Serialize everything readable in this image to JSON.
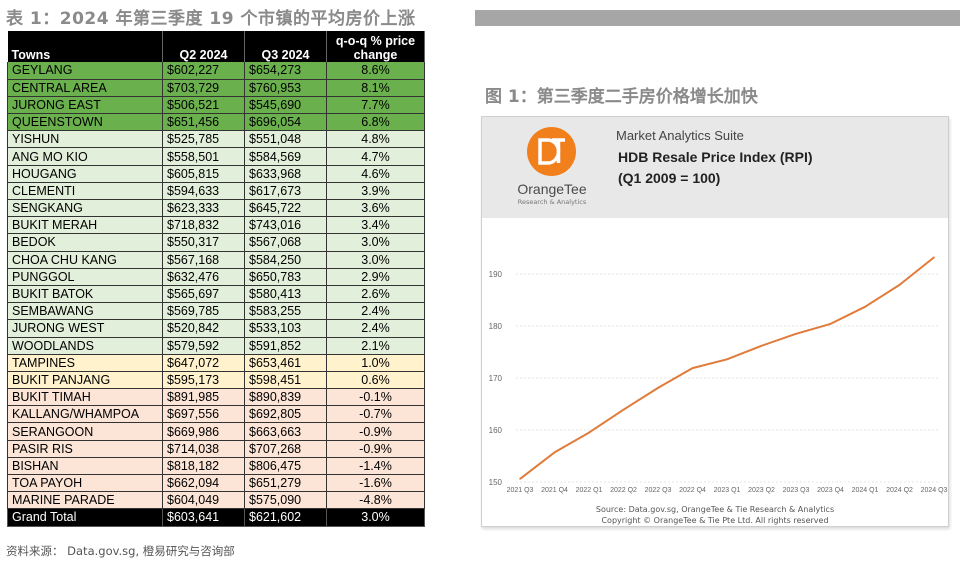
{
  "table": {
    "title": "表 1：2024 年第三季度 19 个市镇的平均房价上涨",
    "headers": {
      "town": "Towns",
      "q2": "Q2 2024",
      "q3": "Q3 2024",
      "change": "q-o-q % price change"
    },
    "rows": [
      {
        "town": "GEYLANG",
        "q2": "$602,227",
        "q3": "$654,273",
        "change": "8.6%",
        "color": "#6ab04c"
      },
      {
        "town": "CENTRAL AREA",
        "q2": "$703,729",
        "q3": "$760,953",
        "change": "8.1%",
        "color": "#6ab04c"
      },
      {
        "town": "JURONG EAST",
        "q2": "$506,521",
        "q3": "$545,690",
        "change": "7.7%",
        "color": "#6ab04c"
      },
      {
        "town": "QUEENSTOWN",
        "q2": "$651,456",
        "q3": "$696,054",
        "change": "6.8%",
        "color": "#6ab04c"
      },
      {
        "town": "YISHUN",
        "q2": "$525,785",
        "q3": "$551,048",
        "change": "4.8%",
        "color": "#e2efda"
      },
      {
        "town": "ANG MO KIO",
        "q2": "$558,501",
        "q3": "$584,569",
        "change": "4.7%",
        "color": "#e2efda"
      },
      {
        "town": "HOUGANG",
        "q2": "$605,815",
        "q3": "$633,968",
        "change": "4.6%",
        "color": "#e2efda"
      },
      {
        "town": "CLEMENTI",
        "q2": "$594,633",
        "q3": "$617,673",
        "change": "3.9%",
        "color": "#e2efda"
      },
      {
        "town": "SENGKANG",
        "q2": "$623,333",
        "q3": "$645,722",
        "change": "3.6%",
        "color": "#e2efda"
      },
      {
        "town": "BUKIT MERAH",
        "q2": "$718,832",
        "q3": "$743,016",
        "change": "3.4%",
        "color": "#e2efda"
      },
      {
        "town": "BEDOK",
        "q2": "$550,317",
        "q3": "$567,068",
        "change": "3.0%",
        "color": "#e2efda"
      },
      {
        "town": "CHOA CHU KANG",
        "q2": "$567,168",
        "q3": "$584,250",
        "change": "3.0%",
        "color": "#e2efda"
      },
      {
        "town": "PUNGGOL",
        "q2": "$632,476",
        "q3": "$650,783",
        "change": "2.9%",
        "color": "#e2efda"
      },
      {
        "town": "BUKIT BATOK",
        "q2": "$565,697",
        "q3": "$580,413",
        "change": "2.6%",
        "color": "#e2efda"
      },
      {
        "town": "SEMBAWANG",
        "q2": "$569,785",
        "q3": "$583,255",
        "change": "2.4%",
        "color": "#e2efda"
      },
      {
        "town": "JURONG WEST",
        "q2": "$520,842",
        "q3": "$533,103",
        "change": "2.4%",
        "color": "#e2efda"
      },
      {
        "town": "WOODLANDS",
        "q2": "$579,592",
        "q3": "$591,852",
        "change": "2.1%",
        "color": "#e2efda"
      },
      {
        "town": "TAMPINES",
        "q2": "$647,072",
        "q3": "$653,461",
        "change": "1.0%",
        "color": "#fff2cc"
      },
      {
        "town": "BUKIT PANJANG",
        "q2": "$595,173",
        "q3": "$598,451",
        "change": "0.6%",
        "color": "#fff2cc"
      },
      {
        "town": "BUKIT TIMAH",
        "q2": "$891,985",
        "q3": "$890,839",
        "change": "-0.1%",
        "color": "#fce4d6"
      },
      {
        "town": "KALLANG/WHAMPOA",
        "q2": "$697,556",
        "q3": "$692,805",
        "change": "-0.7%",
        "color": "#fce4d6"
      },
      {
        "town": "SERANGOON",
        "q2": "$669,986",
        "q3": "$663,663",
        "change": "-0.9%",
        "color": "#fce4d6"
      },
      {
        "town": "PASIR RIS",
        "q2": "$714,038",
        "q3": "$707,268",
        "change": "-0.9%",
        "color": "#fce4d6"
      },
      {
        "town": "BISHAN",
        "q2": "$818,182",
        "q3": "$806,475",
        "change": "-1.4%",
        "color": "#fce4d6"
      },
      {
        "town": "TOA PAYOH",
        "q2": "$662,094",
        "q3": "$651,279",
        "change": "-1.6%",
        "color": "#fce4d6"
      },
      {
        "town": "MARINE PARADE",
        "q2": "$604,049",
        "q3": "$575,090",
        "change": "-4.8%",
        "color": "#fce4d6"
      }
    ],
    "total": {
      "town": "Grand Total",
      "q2": "$603,641",
      "q3": "$621,602",
      "change": "3.0%"
    }
  },
  "source_note": "资料来源：  Data.gov.sg, 橙易研究与咨询部",
  "figure": {
    "title": "图 1：第三季度二手房价格增长加快",
    "suite_name": "Market Analytics Suite",
    "logo_name": "OrangeTee",
    "logo_sub": "Research & Analytics",
    "chart_source": "Source: Data.gov.sg, OrangeTee & Tie Research & Analytics",
    "chart_copyright": "Copyright © OrangeTee & Tie Pte Ltd. All rights reserved"
  },
  "chart_data": {
    "type": "line",
    "title": "HDB Resale Price Index (RPI)",
    "subtitle": "(Q1 2009 = 100)",
    "xlabel": "",
    "ylabel": "",
    "categories": [
      "2021 Q3",
      "2021 Q4",
      "2022 Q1",
      "2022 Q2",
      "2022 Q3",
      "2022 Q4",
      "2023 Q1",
      "2023 Q2",
      "2023 Q3",
      "2023 Q4",
      "2024 Q1",
      "2024 Q2",
      "2024 Q3"
    ],
    "series": [
      {
        "values": [
          150.6,
          155.7,
          159.5,
          163.9,
          168.1,
          171.9,
          173.6,
          176.2,
          178.5,
          180.4,
          183.7,
          187.9,
          193.2
        ],
        "color": "#e07b3a"
      }
    ],
    "ylim": [
      150,
      195
    ],
    "yticks": [
      150,
      160,
      170,
      180,
      190
    ],
    "grid": true,
    "legend": "none"
  }
}
